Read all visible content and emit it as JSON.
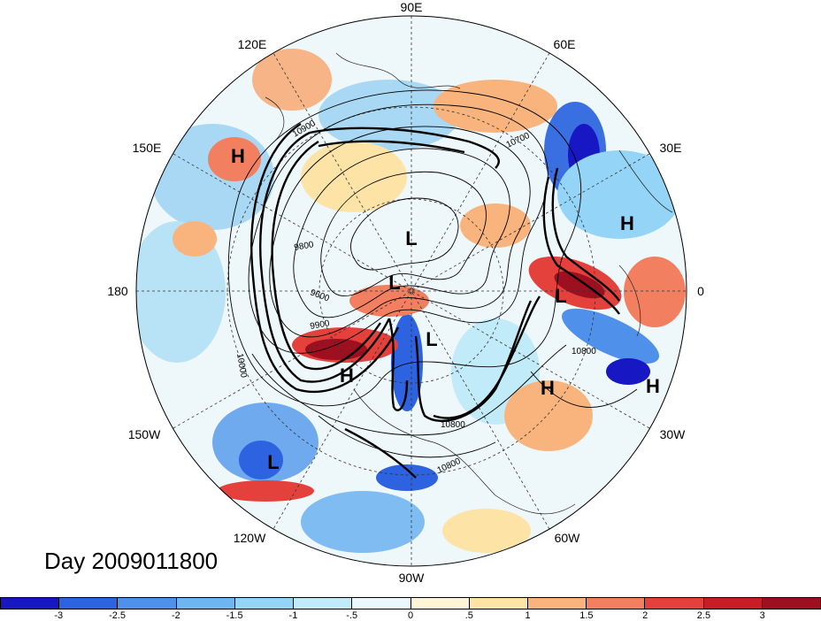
{
  "title": "Day 2009011800",
  "map": {
    "projection": "north-polar-stereographic",
    "longitude_labels": [
      "90E",
      "60E",
      "30E",
      "0",
      "30W",
      "60W",
      "90W",
      "120W",
      "150W",
      "180",
      "150E",
      "120E"
    ],
    "contour_labels": [
      "10900",
      "10700",
      "9800",
      "9600",
      "9900",
      "10000",
      "10800",
      "10800",
      "10800"
    ],
    "pressure_centers": [
      "H",
      "H",
      "H",
      "H",
      "H",
      "L",
      "L",
      "L",
      "L",
      "L"
    ]
  },
  "colorbar": {
    "ticks": [
      "-3",
      "-2.5",
      "-2",
      "-1.5",
      "-1",
      "-.5",
      "0",
      ".5",
      "1",
      "1.5",
      "2",
      "2.5",
      "3"
    ],
    "colors": [
      "#1717c4",
      "#2d62e0",
      "#4f91ea",
      "#6fb6f1",
      "#94d4f6",
      "#c2ebf9",
      "#eaf8fb",
      "#fdf5d6",
      "#fde3a6",
      "#f9b47e",
      "#f27f5f",
      "#e4403c",
      "#c71e26",
      "#9e0f1f"
    ]
  }
}
